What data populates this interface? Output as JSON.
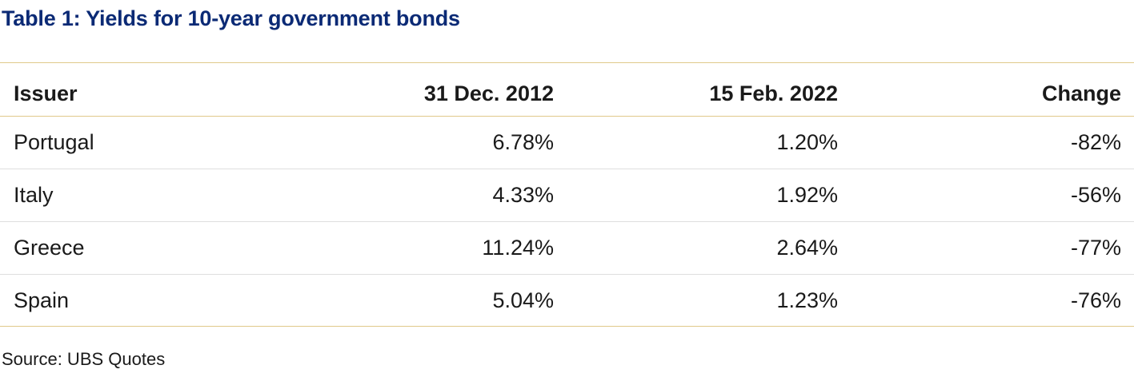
{
  "title": "Table 1: Yields for 10-year government bonds",
  "table": {
    "headers": {
      "issuer": "Issuer",
      "dec2012": "31 Dec. 2012",
      "feb2022": "15 Feb. 2022",
      "change": "Change"
    },
    "rows": [
      {
        "issuer": "Portugal",
        "dec2012": "6.78%",
        "feb2022": "1.20%",
        "change": "-82%"
      },
      {
        "issuer": "Italy",
        "dec2012": "4.33%",
        "feb2022": "1.92%",
        "change": "-56%"
      },
      {
        "issuer": "Greece",
        "dec2012": "11.24%",
        "feb2022": "2.64%",
        "change": "-77%"
      },
      {
        "issuer": "Spain",
        "dec2012": "5.04%",
        "feb2022": "1.23%",
        "change": "-76%"
      }
    ]
  },
  "source": "Source: UBS Quotes",
  "colors": {
    "title": "#0b2a75",
    "rule": "#e0c98a",
    "row_divider": "#dedede"
  }
}
